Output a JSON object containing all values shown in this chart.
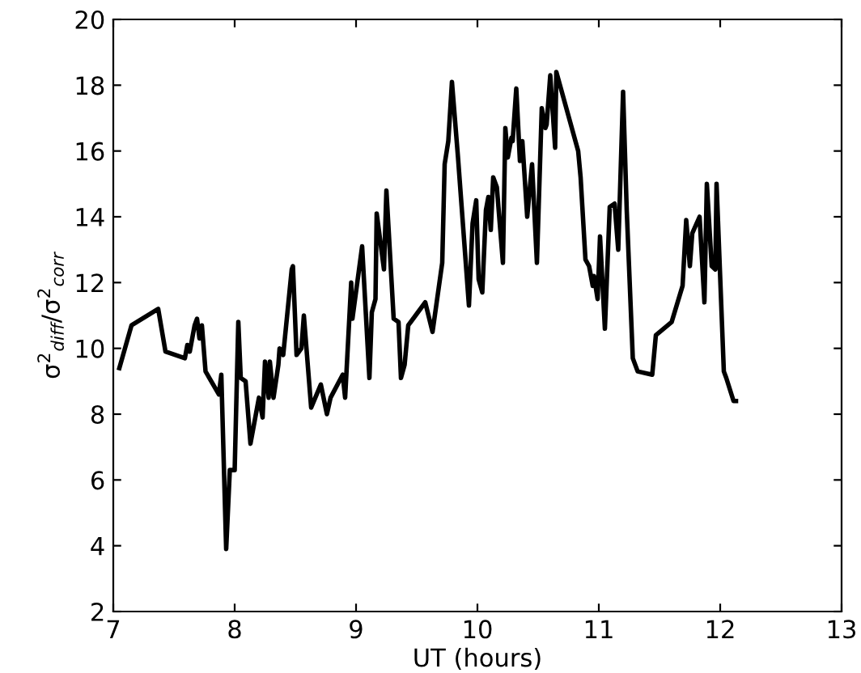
{
  "chart_data": {
    "type": "line",
    "xlabel": "UT (hours)",
    "ylabel": "σ$^{2}$$_{diff}$/σ$^{2}$$_{corr}$",
    "xlim": [
      7,
      13
    ],
    "ylim": [
      2,
      20
    ],
    "xticks": [
      7,
      8,
      9,
      10,
      11,
      12,
      13
    ],
    "yticks": [
      2,
      4,
      6,
      8,
      10,
      12,
      14,
      16,
      18,
      20
    ],
    "grid": false,
    "legend": false,
    "marker": "none",
    "line_style": "solid",
    "series": [
      {
        "color": "#000000",
        "x": [
          7.05,
          7.15,
          7.37,
          7.43,
          7.59,
          7.61,
          7.63,
          7.67,
          7.69,
          7.71,
          7.73,
          7.76,
          7.87,
          7.89,
          7.93,
          7.96,
          8.0,
          8.03,
          8.05,
          8.09,
          8.13,
          8.2,
          8.23,
          8.25,
          8.28,
          8.29,
          8.32,
          8.36,
          8.37,
          8.4,
          8.47,
          8.48,
          8.51,
          8.55,
          8.57,
          8.63,
          8.71,
          8.76,
          8.79,
          8.89,
          8.91,
          8.96,
          8.97,
          9.05,
          9.11,
          9.13,
          9.16,
          9.17,
          9.23,
          9.25,
          9.31,
          9.35,
          9.37,
          9.4,
          9.43,
          9.57,
          9.63,
          9.71,
          9.73,
          9.76,
          9.79,
          9.84,
          9.93,
          9.96,
          9.99,
          10.01,
          10.04,
          10.07,
          10.09,
          10.11,
          10.13,
          10.16,
          10.21,
          10.23,
          10.25,
          10.28,
          10.29,
          10.32,
          10.35,
          10.37,
          10.41,
          10.45,
          10.49,
          10.53,
          10.56,
          10.57,
          10.6,
          10.64,
          10.65,
          10.83,
          10.85,
          10.89,
          10.92,
          10.95,
          10.96,
          10.99,
          11.01,
          11.05,
          11.09,
          11.13,
          11.16,
          11.2,
          11.23,
          11.28,
          11.32,
          11.44,
          11.47,
          11.6,
          11.69,
          11.72,
          11.75,
          11.77,
          11.83,
          11.87,
          11.89,
          11.93,
          11.96,
          11.97,
          12.03,
          12.05,
          12.11,
          12.13
        ],
        "values": [
          9.4,
          10.7,
          11.2,
          9.9,
          9.7,
          10.1,
          9.9,
          10.7,
          10.9,
          10.3,
          10.7,
          9.3,
          8.6,
          9.2,
          3.9,
          6.3,
          6.3,
          10.8,
          9.1,
          9.0,
          7.1,
          8.5,
          7.9,
          9.6,
          8.5,
          9.6,
          8.5,
          9.5,
          10.0,
          9.8,
          12.4,
          12.5,
          9.8,
          10.0,
          11.0,
          8.2,
          8.9,
          8.0,
          8.5,
          9.2,
          8.5,
          12.0,
          10.9,
          13.1,
          9.1,
          11.1,
          11.5,
          14.1,
          12.4,
          14.8,
          10.9,
          10.8,
          9.1,
          9.5,
          10.7,
          11.4,
          10.5,
          12.6,
          15.6,
          16.3,
          18.1,
          15.8,
          11.3,
          13.8,
          14.5,
          12.1,
          11.7,
          14.2,
          14.6,
          13.6,
          15.2,
          14.9,
          12.6,
          16.7,
          15.8,
          16.4,
          16.3,
          17.9,
          15.7,
          16.3,
          14.0,
          15.6,
          12.6,
          17.3,
          16.7,
          16.8,
          18.3,
          16.1,
          18.4,
          16.0,
          15.2,
          12.7,
          12.5,
          11.9,
          12.2,
          11.5,
          13.4,
          10.6,
          14.3,
          14.4,
          13.0,
          17.8,
          14.2,
          9.7,
          9.3,
          9.2,
          10.4,
          10.8,
          11.9,
          13.9,
          12.5,
          13.5,
          14.0,
          11.4,
          15.0,
          12.5,
          12.4,
          15.0,
          9.3,
          9.1,
          8.4,
          8.4
        ]
      }
    ]
  }
}
